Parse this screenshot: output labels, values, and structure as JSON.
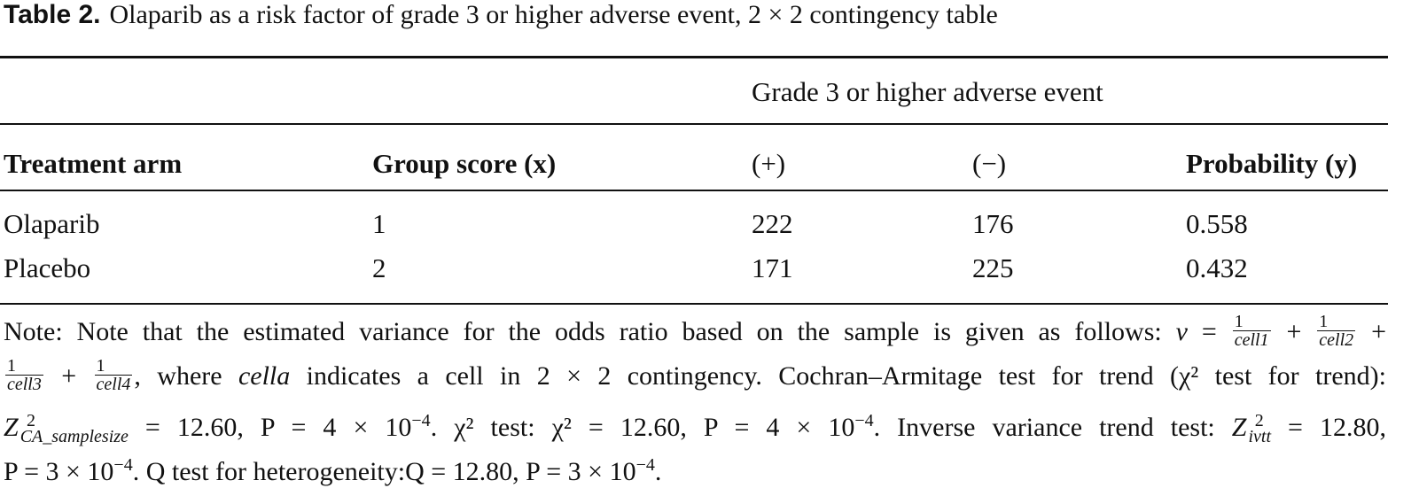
{
  "title": {
    "label": "Table 2.",
    "text": "Olaparib as a risk factor of grade 3 or higher adverse event, 2 × 2 contingency table"
  },
  "table": {
    "group_header": "Grade 3 or higher adverse event",
    "columns": [
      "Treatment arm",
      "Group score (x)",
      "(+)",
      "(−)",
      "Probability (y)"
    ],
    "rows": [
      [
        "Olaparib",
        "1",
        "222",
        "176",
        "0.558"
      ],
      [
        "Placebo",
        "2",
        "171",
        "225",
        "0.432"
      ]
    ]
  },
  "note": {
    "l1a": "Note: Note that the estimated variance for the odds ratio based on the sample is given as follows: ",
    "v": "v",
    "eq": " = ",
    "one": "1",
    "cell1": "cell1",
    "cell2": "cell2",
    "cell3": "cell3",
    "cell4": "cell4",
    "plus": " + ",
    "l2a": ", where ",
    "cella": "cella",
    "l2b": " indicates a cell in 2 × 2 contingency. Cochran–Armitage test for trend (χ² test for trend):",
    "l3a": "Z",
    "sup2": "2",
    "sub_ca": "CA_samplesize",
    "l3b": " = 12.60, P = 4 × 10",
    "exp": "−4",
    "l3c": ". χ² test: χ² = 12.60, P = 4 × 10",
    "l3d": ". Inverse variance trend test: ",
    "sub_ivtt": "ivtt",
    "l3e": " = 12.80,",
    "l4a": "P = 3 × 10",
    "l4b": ". Q test for heterogeneity:Q = 12.80, P = 3 × 10",
    "l4c": "."
  }
}
